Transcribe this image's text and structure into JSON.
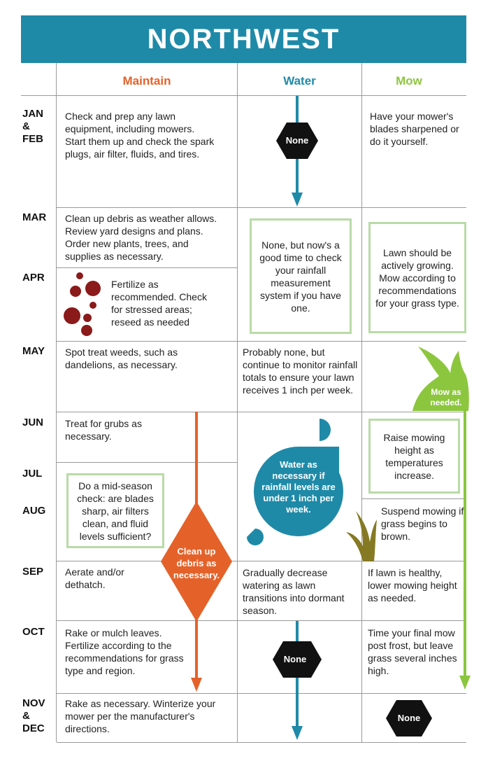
{
  "title": "NORTHWEST",
  "headers": {
    "maintain": "Maintain",
    "water": "Water",
    "mow": "Mow"
  },
  "colors": {
    "banner": "#1f8aa8",
    "maintain": "#e4622a",
    "water": "#1f8aa8",
    "mow": "#8cc63e",
    "dark_red": "#8b1a1a",
    "olive": "#857a23",
    "box_border": "#b9dba7"
  },
  "months": {
    "janfeb": [
      "JAN",
      "&",
      "FEB"
    ],
    "mar": "MAR",
    "apr": "APR",
    "may": "MAY",
    "jun": "JUN",
    "jul": "JUL",
    "aug": "AUG",
    "sep": "SEP",
    "oct": "OCT",
    "novdec": [
      "NOV",
      "&",
      "DEC"
    ]
  },
  "maintain": {
    "janfeb": "Check and prep any lawn equipment, including mowers. Start them up and check the spark plugs, air filter, fluids, and tires.",
    "mar": "Clean up debris as weather allows. Review yard designs and plans. Order new plants, trees, and supplies as necessary.",
    "apr": "Fertilize as recommended. Check for stressed areas; reseed as needed",
    "may": "Spot treat weeds, such as dandelions, as necessary.",
    "jun": "Treat for grubs as necessary.",
    "julaug": "Do a mid-season check: are blades sharp, air filters clean, and fluid levels sufficient?",
    "cleanup": "Clean up debris as necessary.",
    "sep": "Aerate and/or dethatch.",
    "oct": "Rake or mulch leaves. Fertilize according to the recommendations for grass type and region.",
    "novdec": "Rake as necessary. Winterize your mower per the manufacturer's directions."
  },
  "water": {
    "janfeb": "None",
    "marapr": "None, but now's a good time to check your rainfall measurement system if you have one.",
    "may": "Probably none, but continue to monitor rainfall totals to ensure your lawn receives 1 inch per week.",
    "summer": "Water as necessary if rainfall levels are under 1 inch per week.",
    "sep": "Gradually decrease watering as lawn transitions into dormant season.",
    "oct": "None"
  },
  "mow": {
    "janfeb": "Have your mower's blades sharpened or do it yourself.",
    "marapr": "Lawn should be actively growing. Mow according to recommendations for your grass type.",
    "may": "Mow as needed.",
    "junjul": "Raise mowing height as temperatures increase.",
    "aug": "Suspend mowing if grass begins to brown.",
    "sep": "If lawn is healthy, lower mowing height as needed.",
    "oct": "Time your final mow post frost, but leave grass several inches high.",
    "novdec": "None"
  },
  "icons": [
    "down-arrow-icon",
    "hexagon-icon",
    "diamond-icon",
    "grass-icon",
    "blob-icon",
    "dots-icon"
  ]
}
